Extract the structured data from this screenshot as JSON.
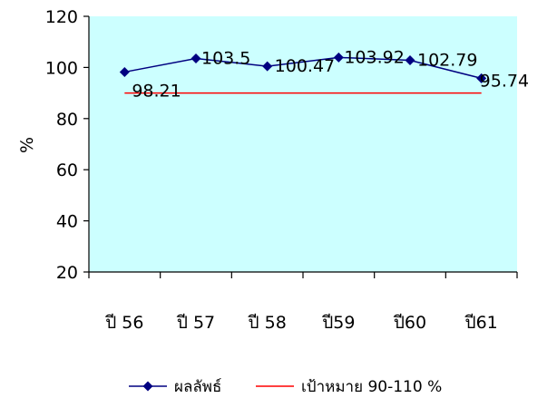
{
  "chart_data": {
    "type": "line",
    "categories": [
      "ปี 56",
      "ปี 57",
      "ปี 58",
      "ปี59",
      "ปี60",
      "ปี61"
    ],
    "series": [
      {
        "name": "ผลลัพธ์",
        "values": [
          98.21,
          103.5,
          100.47,
          103.92,
          102.79,
          95.74
        ],
        "data_labels": [
          "98.21",
          "103.5",
          "100.47",
          "103.92",
          "102.79",
          "95.74"
        ],
        "color": "#000080",
        "marker": "diamond"
      },
      {
        "name": "เป้าหมาย 90-110 %",
        "values": [
          90,
          90,
          90,
          90,
          90,
          90
        ],
        "color": "#ff0000",
        "marker": "none"
      }
    ],
    "title": "",
    "xlabel": "",
    "ylabel": "%",
    "ylim": [
      20,
      120
    ],
    "yticks": [
      "20",
      "40",
      "60",
      "80",
      "100",
      "120"
    ],
    "grid": false,
    "legend": "bottom",
    "plot_background": "#ccffff"
  }
}
